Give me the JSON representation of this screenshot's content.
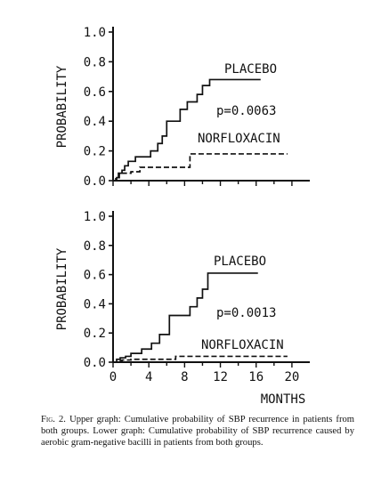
{
  "chart_data": [
    {
      "type": "line",
      "step": true,
      "ylabel": "PROBABILITY",
      "xlabel": "",
      "xlim": [
        0,
        22
      ],
      "ylim": [
        0,
        1.0
      ],
      "x_ticks": [],
      "y_ticks": [
        "0.0",
        "0.2",
        "0.4",
        "0.6",
        "0.8",
        "1.0"
      ],
      "annotation": "p=0.0063",
      "series": [
        {
          "name": "PLACEBO",
          "style": "solid",
          "x": [
            0,
            0.4,
            0.7,
            1.0,
            1.3,
            1.7,
            2.5,
            4.2,
            5.0,
            5.5,
            6.0,
            7.5,
            8.3,
            9.4,
            10.0,
            10.8,
            16.5
          ],
          "y": [
            0.0,
            0.02,
            0.05,
            0.07,
            0.1,
            0.13,
            0.16,
            0.2,
            0.25,
            0.3,
            0.4,
            0.48,
            0.53,
            0.58,
            0.64,
            0.68,
            0.68
          ]
        },
        {
          "name": "NORFLOXACIN",
          "style": "dashed",
          "x": [
            0,
            0.3,
            0.6,
            2.0,
            3.0,
            8.2,
            8.6,
            19.5
          ],
          "y": [
            0.0,
            0.02,
            0.05,
            0.06,
            0.09,
            0.09,
            0.18,
            0.18
          ]
        }
      ]
    },
    {
      "type": "line",
      "step": true,
      "ylabel": "PROBABILITY",
      "xlabel": "MONTHS",
      "xlim": [
        0,
        22
      ],
      "ylim": [
        0,
        1.0
      ],
      "x_ticks": [
        "0",
        "4",
        "8",
        "12",
        "16",
        "20"
      ],
      "y_ticks": [
        "0.0",
        "0.2",
        "0.4",
        "0.6",
        "0.8",
        "1.0"
      ],
      "annotation": "p=0.0013",
      "series": [
        {
          "name": "PLACEBO",
          "style": "solid",
          "x": [
            0,
            0.4,
            0.8,
            1.4,
            2.0,
            3.2,
            4.3,
            5.2,
            6.3,
            8.6,
            9.4,
            10.0,
            10.6,
            16.2
          ],
          "y": [
            0.0,
            0.02,
            0.03,
            0.04,
            0.06,
            0.09,
            0.13,
            0.19,
            0.32,
            0.38,
            0.44,
            0.5,
            0.61,
            0.61
          ]
        },
        {
          "name": "NORFLOXACIN",
          "style": "dashed",
          "x": [
            0,
            0.5,
            1.0,
            2.0,
            6.5,
            7.0,
            19.5
          ],
          "y": [
            0.0,
            0.01,
            0.015,
            0.02,
            0.02,
            0.04,
            0.04
          ]
        }
      ]
    }
  ],
  "caption": {
    "lead": "Fig. 2.",
    "text": "Upper graph: Cumulative probability of SBP recurrence in patients from both groups. Lower graph: Cumulative probability of SBP recurrence caused by aerobic gram-negative bacilli in patients from both groups."
  }
}
